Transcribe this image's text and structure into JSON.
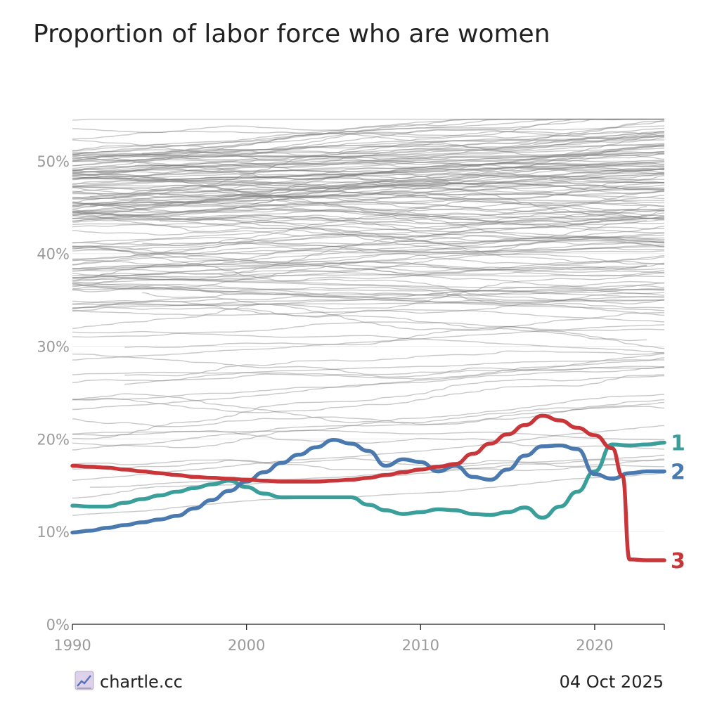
{
  "title": "Proportion of labor force who are women",
  "footer": {
    "brand": "chartle.cc",
    "date": "04 Oct 2025",
    "brand_icon": "line-chart-icon"
  },
  "colors": {
    "background_lines": "#b8b8b8",
    "series_1": "#3a9e9a",
    "series_2": "#4a79b0",
    "series_3": "#c8363a",
    "axis": "#222222",
    "tick_text": "#9a9a9a"
  },
  "chart_data": {
    "type": "line",
    "title": "Proportion of labor force who are women",
    "xlabel": "",
    "ylabel": "",
    "xlim": [
      1990,
      2024
    ],
    "ylim": [
      0,
      55
    ],
    "x_ticks": [
      1990,
      2000,
      2010,
      2020
    ],
    "x_tick_labels": [
      "1990",
      "2000",
      "2010",
      "2020"
    ],
    "y_ticks": [
      0,
      10,
      20,
      30,
      40,
      50
    ],
    "y_tick_labels": [
      "0%",
      "10%",
      "20%",
      "30%",
      "40%",
      "50%"
    ],
    "grid": "horizontal",
    "background_series_count": 170,
    "background_series_note": "unlabeled grey lines, one per country, mostly between 33% and 52%",
    "series": [
      {
        "name": "1",
        "color": "#3a9e9a",
        "points": [
          [
            1990,
            12.8
          ],
          [
            1991,
            12.7
          ],
          [
            1992,
            12.7
          ],
          [
            1993,
            13.1
          ],
          [
            1994,
            13.5
          ],
          [
            1995,
            13.9
          ],
          [
            1996,
            14.3
          ],
          [
            1997,
            14.7
          ],
          [
            1998,
            15.1
          ],
          [
            1999,
            15.5
          ],
          [
            2000,
            14.8
          ],
          [
            2001,
            14.1
          ],
          [
            2002,
            13.7
          ],
          [
            2003,
            13.7
          ],
          [
            2004,
            13.7
          ],
          [
            2005,
            13.7
          ],
          [
            2006,
            13.7
          ],
          [
            2007,
            12.9
          ],
          [
            2008,
            12.3
          ],
          [
            2009,
            11.9
          ],
          [
            2010,
            12.1
          ],
          [
            2011,
            12.4
          ],
          [
            2012,
            12.3
          ],
          [
            2013,
            11.9
          ],
          [
            2014,
            11.8
          ],
          [
            2015,
            12.1
          ],
          [
            2016,
            12.6
          ],
          [
            2017,
            11.5
          ],
          [
            2018,
            12.7
          ],
          [
            2019,
            14.3
          ],
          [
            2020,
            16.5
          ],
          [
            2021,
            19.4
          ],
          [
            2022,
            19.3
          ],
          [
            2023,
            19.4
          ],
          [
            2024,
            19.6
          ]
        ]
      },
      {
        "name": "2",
        "color": "#4a79b0",
        "points": [
          [
            1990,
            9.9
          ],
          [
            1991,
            10.1
          ],
          [
            1992,
            10.4
          ],
          [
            1993,
            10.7
          ],
          [
            1994,
            11.0
          ],
          [
            1995,
            11.3
          ],
          [
            1996,
            11.7
          ],
          [
            1997,
            12.5
          ],
          [
            1998,
            13.4
          ],
          [
            1999,
            14.4
          ],
          [
            2000,
            15.4
          ],
          [
            2001,
            16.4
          ],
          [
            2002,
            17.4
          ],
          [
            2003,
            18.3
          ],
          [
            2004,
            19.1
          ],
          [
            2005,
            19.9
          ],
          [
            2006,
            19.5
          ],
          [
            2007,
            18.7
          ],
          [
            2008,
            17.1
          ],
          [
            2009,
            17.8
          ],
          [
            2010,
            17.5
          ],
          [
            2011,
            16.5
          ],
          [
            2012,
            17.1
          ],
          [
            2013,
            15.9
          ],
          [
            2014,
            15.6
          ],
          [
            2015,
            16.7
          ],
          [
            2016,
            18.2
          ],
          [
            2017,
            19.2
          ],
          [
            2018,
            19.3
          ],
          [
            2019,
            18.9
          ],
          [
            2020,
            16.2
          ],
          [
            2021,
            15.7
          ],
          [
            2022,
            16.3
          ],
          [
            2023,
            16.5
          ],
          [
            2024,
            16.5
          ]
        ]
      },
      {
        "name": "3",
        "color": "#c8363a",
        "points": [
          [
            1990,
            17.1
          ],
          [
            1991,
            17.0
          ],
          [
            1992,
            16.9
          ],
          [
            1993,
            16.7
          ],
          [
            1994,
            16.5
          ],
          [
            1995,
            16.3
          ],
          [
            1996,
            16.1
          ],
          [
            1997,
            15.9
          ],
          [
            1998,
            15.8
          ],
          [
            1999,
            15.7
          ],
          [
            2000,
            15.6
          ],
          [
            2001,
            15.5
          ],
          [
            2002,
            15.4
          ],
          [
            2003,
            15.4
          ],
          [
            2004,
            15.4
          ],
          [
            2005,
            15.5
          ],
          [
            2006,
            15.6
          ],
          [
            2007,
            15.8
          ],
          [
            2008,
            16.1
          ],
          [
            2009,
            16.4
          ],
          [
            2010,
            16.7
          ],
          [
            2011,
            17.0
          ],
          [
            2012,
            17.3
          ],
          [
            2013,
            18.4
          ],
          [
            2014,
            19.5
          ],
          [
            2015,
            20.5
          ],
          [
            2016,
            21.5
          ],
          [
            2017,
            22.5
          ],
          [
            2018,
            22.0
          ],
          [
            2019,
            21.2
          ],
          [
            2020,
            20.4
          ],
          [
            2021,
            19.0
          ],
          [
            2021.6,
            16.0
          ],
          [
            2022,
            7.0
          ],
          [
            2023,
            6.9
          ],
          [
            2024,
            6.9
          ]
        ]
      }
    ]
  }
}
